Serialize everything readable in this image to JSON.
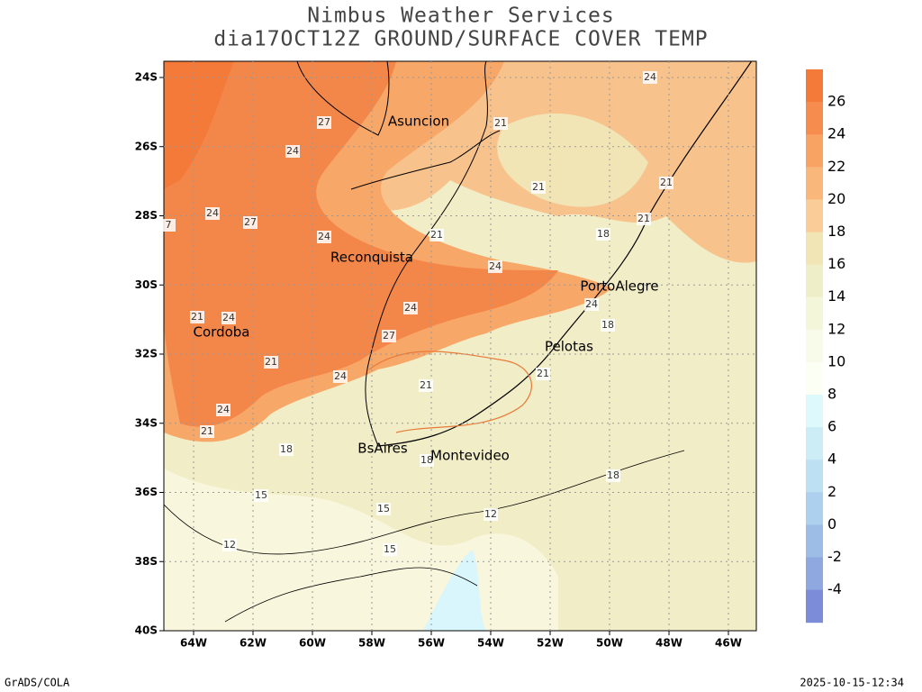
{
  "header": {
    "title": "Nimbus Weather Services",
    "subtitle": "dia17OCT12Z GROUND/SURFACE COVER TEMP"
  },
  "map": {
    "lat_ticks": [
      "24S",
      "26S",
      "28S",
      "30S",
      "32S",
      "34S",
      "36S",
      "38S",
      "40S"
    ],
    "lon_ticks": [
      "64W",
      "62W",
      "60W",
      "58W",
      "56W",
      "54W",
      "52W",
      "50W",
      "48W",
      "46W"
    ],
    "cities": [
      "Asuncion",
      "Reconquista",
      "PortoAlegre",
      "Cordoba",
      "Pelotas",
      "BsAires",
      "Montevideo"
    ],
    "contour_labels": [
      27,
      24,
      21,
      24,
      21,
      21,
      24,
      27,
      7,
      21,
      18,
      24,
      21,
      24,
      24,
      24,
      21,
      24,
      18,
      27,
      21,
      24,
      21,
      21,
      24,
      21,
      18,
      18,
      18,
      15,
      15,
      12,
      12,
      15
    ]
  },
  "colorbar": {
    "labels": [
      26,
      24,
      22,
      20,
      18,
      16,
      14,
      12,
      10,
      8,
      6,
      4,
      2,
      0,
      -2,
      -4
    ],
    "colors": [
      "#f47a3a",
      "#f68d4e",
      "#f8a264",
      "#f9b77c",
      "#f9cc98",
      "#f1e4b5",
      "#eeefc9",
      "#f4f6da",
      "#f9fbea",
      "#fcfff4",
      "#def9fc",
      "#ccedf6",
      "#bde0f2",
      "#acd0ed",
      "#9dbde6",
      "#8fa9e0",
      "#7c8cd8"
    ]
  },
  "footer": {
    "left": "GrADS/COLA",
    "right": "2025-10-15-12:34"
  }
}
